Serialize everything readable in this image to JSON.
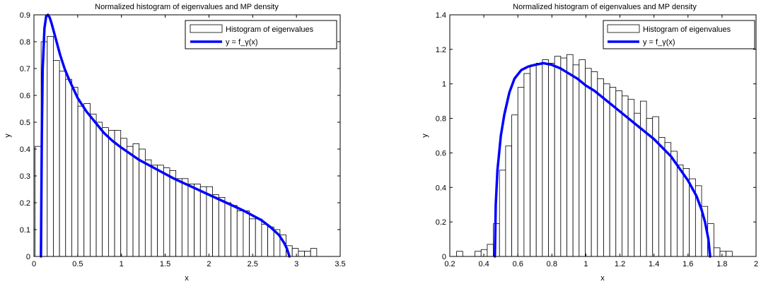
{
  "chart_data": [
    {
      "type": "bar",
      "title": "Normalized histogram of eigenvalues and MP density",
      "xlabel": "x",
      "ylabel": "y",
      "xlim": [
        0,
        3.5
      ],
      "ylim": [
        0,
        0.9
      ],
      "xticks": [
        0,
        0.5,
        1,
        1.5,
        2,
        2.5,
        3,
        3.5
      ],
      "xtick_labels": [
        "0",
        "0.5",
        "1",
        "1.5",
        "2",
        "2.5",
        "3",
        "3.5"
      ],
      "yticks": [
        0,
        0.1,
        0.2,
        0.3,
        0.4,
        0.5,
        0.6,
        0.7,
        0.8,
        0.9
      ],
      "ytick_labels": [
        "0",
        "0.1",
        "0.2",
        "0.3",
        "0.4",
        "0.5",
        "0.6",
        "0.7",
        "0.8",
        "0.9"
      ],
      "legend": {
        "position": "top-right",
        "entries": [
          "Histogram of eigenvalues",
          "y = f_γ(x)"
        ]
      },
      "grid": false,
      "series": [
        {
          "name": "Histogram of eigenvalues",
          "kind": "histogram",
          "bin_edges": [
            0.012,
            0.082,
            0.152,
            0.222,
            0.292,
            0.362,
            0.432,
            0.502,
            0.572,
            0.642,
            0.712,
            0.782,
            0.852,
            0.922,
            0.992,
            1.062,
            1.132,
            1.202,
            1.272,
            1.342,
            1.412,
            1.482,
            1.552,
            1.622,
            1.692,
            1.762,
            1.832,
            1.902,
            1.972,
            2.042,
            2.112,
            2.182,
            2.252,
            2.322,
            2.392,
            2.462,
            2.532,
            2.602,
            2.672,
            2.742,
            2.812,
            2.882,
            2.952,
            3.022,
            3.092,
            3.162,
            3.232,
            3.302,
            3.372,
            3.442
          ],
          "values": [
            0.41,
            0.8,
            0.82,
            0.73,
            0.69,
            0.66,
            0.63,
            0.56,
            0.57,
            0.53,
            0.5,
            0.48,
            0.47,
            0.47,
            0.44,
            0.41,
            0.42,
            0.4,
            0.36,
            0.34,
            0.34,
            0.33,
            0.32,
            0.29,
            0.29,
            0.27,
            0.27,
            0.26,
            0.26,
            0.23,
            0.22,
            0.2,
            0.19,
            0.17,
            0.17,
            0.14,
            0.14,
            0.12,
            0.11,
            0.1,
            0.08,
            0.04,
            0.03,
            0.02,
            0.02,
            0.03,
            0.0,
            0.0,
            0.0,
            0.02
          ]
        },
        {
          "name": "y = f_γ(x)",
          "kind": "line",
          "color": "#0000ff",
          "x": [
            0.08,
            0.09,
            0.1,
            0.12,
            0.14,
            0.16,
            0.18,
            0.2,
            0.25,
            0.3,
            0.35,
            0.4,
            0.5,
            0.6,
            0.7,
            0.8,
            0.9,
            1.0,
            1.2,
            1.4,
            1.6,
            1.8,
            2.0,
            2.2,
            2.4,
            2.6,
            2.7,
            2.8,
            2.86,
            2.89,
            2.92
          ],
          "y": [
            0.0,
            0.45,
            0.7,
            0.85,
            0.895,
            0.9,
            0.89,
            0.87,
            0.81,
            0.75,
            0.7,
            0.66,
            0.59,
            0.54,
            0.5,
            0.46,
            0.43,
            0.405,
            0.36,
            0.325,
            0.29,
            0.26,
            0.23,
            0.2,
            0.17,
            0.135,
            0.11,
            0.08,
            0.05,
            0.03,
            0.0
          ]
        }
      ]
    },
    {
      "type": "bar",
      "title": "Normalized histogram of eigenvalues and MP density",
      "xlabel": "x",
      "ylabel": "y",
      "xlim": [
        0.2,
        2
      ],
      "ylim": [
        0,
        1.4
      ],
      "xticks": [
        0.2,
        0.4,
        0.6,
        0.8,
        1,
        1.2,
        1.4,
        1.6,
        1.8,
        2
      ],
      "xtick_labels": [
        "0.2",
        "0.4",
        "0.6",
        "0.8",
        "1",
        "1.2",
        "1.4",
        "1.6",
        "1.8",
        "2"
      ],
      "yticks": [
        0,
        0.2,
        0.4,
        0.6,
        0.8,
        1,
        1.2,
        1.4
      ],
      "ytick_labels": [
        "0",
        "0.2",
        "0.4",
        "0.6",
        "0.8",
        "1",
        "1.2",
        "1.4"
      ],
      "legend": {
        "position": "top-right",
        "entries": [
          "Histogram of eigenvalues",
          "y = f_γ(x)"
        ]
      },
      "grid": false,
      "series": [
        {
          "name": "Histogram of eigenvalues",
          "kind": "histogram",
          "bin_edges": [
            0.24,
            0.276,
            0.312,
            0.348,
            0.384,
            0.42,
            0.456,
            0.492,
            0.528,
            0.564,
            0.6,
            0.636,
            0.672,
            0.708,
            0.744,
            0.78,
            0.816,
            0.852,
            0.888,
            0.924,
            0.96,
            0.996,
            1.032,
            1.068,
            1.104,
            1.14,
            1.176,
            1.212,
            1.248,
            1.284,
            1.32,
            1.356,
            1.392,
            1.428,
            1.464,
            1.5,
            1.536,
            1.572,
            1.608,
            1.644,
            1.68,
            1.716,
            1.752,
            1.788,
            1.824,
            1.86,
            1.896,
            1.932
          ],
          "values": [
            0.03,
            0.0,
            0.0,
            0.03,
            0.04,
            0.07,
            0.19,
            0.5,
            0.64,
            0.82,
            0.98,
            1.06,
            1.11,
            1.12,
            1.14,
            1.12,
            1.16,
            1.15,
            1.17,
            1.11,
            1.14,
            1.09,
            1.07,
            1.03,
            1.0,
            0.98,
            0.96,
            0.93,
            0.91,
            0.83,
            0.9,
            0.8,
            0.81,
            0.69,
            0.66,
            0.61,
            0.53,
            0.51,
            0.45,
            0.41,
            0.29,
            0.19,
            0.05,
            0.03,
            0.03,
            0.0,
            0.0,
            0.03
          ]
        },
        {
          "name": "y = f_γ(x)",
          "kind": "line",
          "color": "#0000ff",
          "x": [
            0.465,
            0.47,
            0.48,
            0.5,
            0.52,
            0.55,
            0.58,
            0.62,
            0.66,
            0.7,
            0.75,
            0.8,
            0.85,
            0.9,
            0.95,
            1.0,
            1.05,
            1.1,
            1.15,
            1.2,
            1.25,
            1.3,
            1.35,
            1.4,
            1.45,
            1.5,
            1.55,
            1.6,
            1.65,
            1.68,
            1.7,
            1.72,
            1.73
          ],
          "y": [
            0.0,
            0.3,
            0.5,
            0.7,
            0.82,
            0.95,
            1.03,
            1.08,
            1.1,
            1.11,
            1.12,
            1.11,
            1.09,
            1.06,
            1.03,
            0.99,
            0.96,
            0.92,
            0.88,
            0.84,
            0.8,
            0.76,
            0.72,
            0.68,
            0.63,
            0.58,
            0.51,
            0.44,
            0.35,
            0.27,
            0.2,
            0.1,
            0.0
          ]
        }
      ]
    }
  ]
}
